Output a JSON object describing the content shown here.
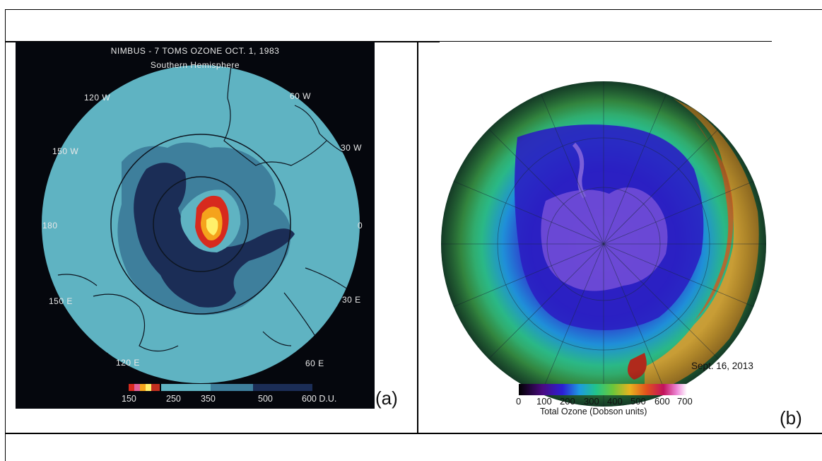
{
  "panel_a": {
    "title": "NIMBUS - 7 TOMS OZONE OCT. 1, 1983",
    "subtitle": "Southern Hemisphere",
    "lon_labels": {
      "w120": "120 W",
      "w60": "60 W",
      "w150": "150 W",
      "w30": "30 W",
      "d180": "180",
      "d0": "0",
      "e150": "150 E",
      "e30": "30 E",
      "e120": "120 E",
      "e60": "60 E"
    },
    "scale_labels": [
      "150",
      "250",
      "350",
      "500",
      "600 D.U."
    ],
    "tag": "(a)"
  },
  "panel_b": {
    "date": "Sept. 16, 2013",
    "colorbar_ticks": [
      "0",
      "100",
      "200",
      "300",
      "400",
      "500",
      "600",
      "700"
    ],
    "colorbar_label": "Total Ozone (Dobson units)",
    "tag": "(b)"
  }
}
